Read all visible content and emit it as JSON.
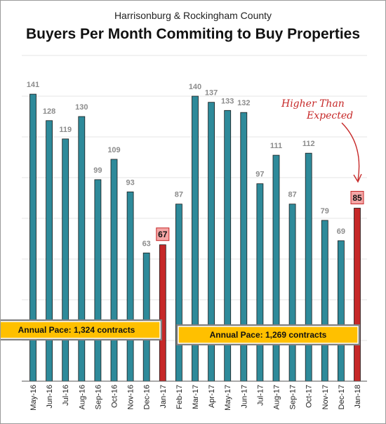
{
  "header": {
    "subtitle": "Harrisonburg & Rockingham County",
    "title": "Buyers Per Month Commiting to Buy Properties"
  },
  "chart_data": {
    "type": "bar",
    "title": "Buyers Per Month Commiting to Buy Properties",
    "subtitle": "Harrisonburg & Rockingham County",
    "xlabel": "",
    "ylabel": "",
    "ylim": [
      0,
      160
    ],
    "grid": true,
    "categories": [
      "May-16",
      "Jun-16",
      "Jul-16",
      "Aug-16",
      "Sep-16",
      "Oct-16",
      "Nov-16",
      "Dec-16",
      "Jan-17",
      "Feb-17",
      "Mar-17",
      "Apr-17",
      "May-17",
      "Jun-17",
      "Jul-17",
      "Aug-17",
      "Sep-17",
      "Oct-17",
      "Nov-17",
      "Dec-17",
      "Jan-18"
    ],
    "values": [
      141,
      128,
      119,
      130,
      99,
      109,
      93,
      63,
      67,
      87,
      140,
      137,
      133,
      132,
      97,
      111,
      87,
      112,
      79,
      69,
      85
    ],
    "highlighted": [
      "Jan-17",
      "Jan-18"
    ],
    "colors": {
      "bar": "#2e8a9a",
      "highlight": "#c62828",
      "highlight_label_bg": "#f4a6a6",
      "pace_box": "#ffc000",
      "grid": "#e4e4e4"
    },
    "annotations": {
      "pace_2016": "Annual Pace: 1,324 contracts",
      "pace_2017": "Annual Pace: 1,269 contracts",
      "note_line1": "Higher Than",
      "note_line2": "Expected"
    }
  }
}
